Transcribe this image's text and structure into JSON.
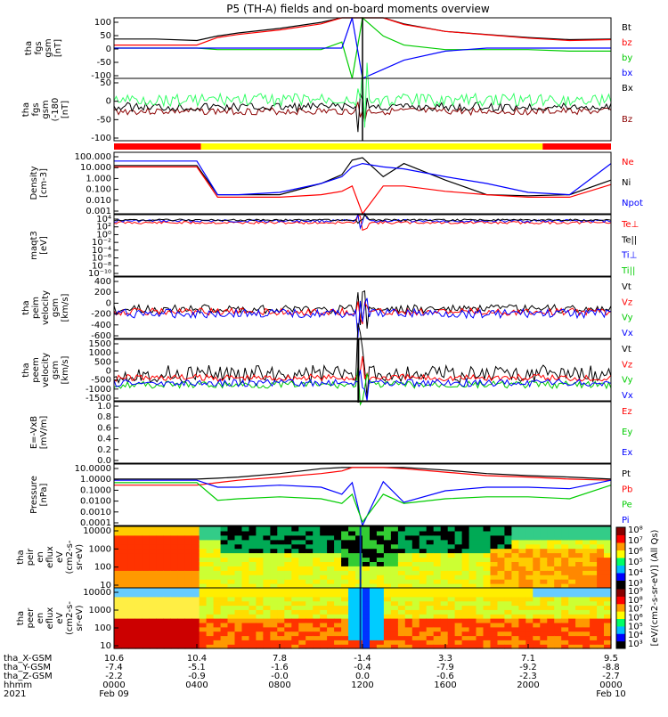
{
  "title": "P5 (TH-A) fields and on-board moments overview",
  "panels": [
    {
      "id": "fgs",
      "ylabel": [
        "tha",
        "fgs",
        "gsm",
        "[nT]"
      ],
      "yticks": [
        "100",
        "50",
        "0",
        "-50",
        "-100"
      ],
      "legend": [
        {
          "t": "Bt",
          "c": "#000000"
        },
        {
          "t": "bz",
          "c": "#ff0000"
        },
        {
          "t": "by",
          "c": "#00cc00"
        },
        {
          "t": "bx",
          "c": "#0000ff"
        }
      ]
    },
    {
      "id": "fgs_ang",
      "ylabel": [
        "tha",
        "fgs",
        "gsm",
        "(-180",
        "[nT]"
      ],
      "yticks": [
        "50",
        "0",
        "-50",
        "-100"
      ],
      "legend": [
        {
          "t": "Bx",
          "c": "#000000"
        },
        {
          "t": "Bz",
          "c": "#8b0000"
        }
      ]
    },
    {
      "id": "density",
      "ylabel": [
        "Density",
        "[cm-3]"
      ],
      "yticks": [
        "100.000",
        "10.000",
        "1.000",
        "0.100",
        "0.010",
        "0.001"
      ],
      "legend": [
        {
          "t": "Ne",
          "c": "#ff0000"
        },
        {
          "t": "Ni",
          "c": "#000000"
        },
        {
          "t": "Npot",
          "c": "#0000ff"
        }
      ]
    },
    {
      "id": "temp",
      "ylabel": [
        "maqt3",
        "[eV]"
      ],
      "yticks": [
        "10⁴",
        "10²",
        "10⁰",
        "10⁻²",
        "10⁻⁴",
        "10⁻⁶",
        "10⁻⁸",
        "10⁻¹⁰"
      ],
      "legend": [
        {
          "t": "Te⊥",
          "c": "#ff0000"
        },
        {
          "t": "Te||",
          "c": "#000000"
        },
        {
          "t": "Ti⊥",
          "c": "#0000ff"
        },
        {
          "t": "Ti||",
          "c": "#00cc00"
        }
      ]
    },
    {
      "id": "peim",
      "ylabel": [
        "tha",
        "peim",
        "velocity",
        "gsm",
        "[km/s]"
      ],
      "yticks": [
        "400",
        "200",
        "0",
        "-200",
        "-400",
        "-600"
      ],
      "legend": [
        {
          "t": "Vt",
          "c": "#000000"
        },
        {
          "t": "Vz",
          "c": "#ff0000"
        },
        {
          "t": "Vy",
          "c": "#00cc00"
        },
        {
          "t": "Vx",
          "c": "#0000ff"
        }
      ]
    },
    {
      "id": "peem",
      "ylabel": [
        "tha",
        "peem",
        "velocity",
        "gsm",
        "[km/s]"
      ],
      "yticks": [
        "1500",
        "1000",
        "500",
        "0",
        "-500",
        "-1000",
        "-1500"
      ],
      "legend": [
        {
          "t": "Vt",
          "c": "#000000"
        },
        {
          "t": "Vz",
          "c": "#ff0000"
        },
        {
          "t": "Vy",
          "c": "#00cc00"
        },
        {
          "t": "Vx",
          "c": "#0000ff"
        }
      ]
    },
    {
      "id": "efield",
      "ylabel": [
        "E=-VxB",
        "[mV/m]"
      ],
      "yticks": [
        "1.0",
        "0.8",
        "0.6",
        "0.4",
        "0.2",
        "0.0"
      ],
      "legend": [
        {
          "t": "Ez",
          "c": "#ff0000"
        },
        {
          "t": "Ey",
          "c": "#00cc00"
        },
        {
          "t": "Ex",
          "c": "#0000ff"
        }
      ]
    },
    {
      "id": "pressure",
      "ylabel": [
        "Pressure",
        "[nPa]"
      ],
      "yticks": [
        "10.0000",
        "1.0000",
        "0.1000",
        "0.0100",
        "0.0010",
        "0.0001"
      ],
      "legend": [
        {
          "t": "Pt",
          "c": "#000000"
        },
        {
          "t": "Pb",
          "c": "#ff0000"
        },
        {
          "t": "Pe",
          "c": "#00cc00"
        },
        {
          "t": "Pi",
          "c": "#0000ff"
        }
      ]
    },
    {
      "id": "peir",
      "ylabel": [
        "tha",
        "peir",
        "en",
        "eflux",
        "eV",
        "(cm2-s-",
        "sr-eV)"
      ],
      "yticks": [
        "10000",
        "1000",
        "100",
        "10"
      ],
      "legend": []
    },
    {
      "id": "peer",
      "ylabel": [
        "tha",
        "peer",
        "en",
        "eflux",
        "eV",
        "(cm2-s-",
        "sr-eV)"
      ],
      "yticks": [
        "10000",
        "1000",
        "100",
        "10"
      ],
      "legend": []
    }
  ],
  "colorbar": {
    "label": "[eV/(cm2-s-sr-eV)] (All Qs)",
    "upper_ticks": [
      "10⁸",
      "10⁷",
      "10⁶",
      "10⁵",
      "10⁴",
      "10³"
    ],
    "lower_ticks": [
      "10⁹",
      "10⁸",
      "10⁷",
      "10⁶",
      "10⁵",
      "10⁴",
      "10³"
    ]
  },
  "xaxis": {
    "row_labels": [
      "tha_X-GSM",
      "tha_Y-GSM",
      "tha_Z-GSM",
      "hhmm",
      "2021"
    ],
    "columns": [
      {
        "v": [
          "10.6",
          "-7.4",
          "-2.2",
          "0000",
          "Feb 09"
        ]
      },
      {
        "v": [
          "10.4",
          "-5.1",
          "-0.9",
          "0400",
          ""
        ]
      },
      {
        "v": [
          "7.8",
          "-1.6",
          "-0.0",
          "0800",
          ""
        ]
      },
      {
        "v": [
          "-1.4",
          "-0.4",
          "0.0",
          "1200",
          ""
        ]
      },
      {
        "v": [
          "3.3",
          "-7.9",
          "-0.6",
          "1600",
          ""
        ]
      },
      {
        "v": [
          "7.1",
          "-9.2",
          "-2.3",
          "2000",
          ""
        ]
      },
      {
        "v": [
          "9.5",
          "-8.8",
          "-2.7",
          "0000",
          "Feb 10"
        ]
      }
    ]
  },
  "chart_data": {
    "type": "line",
    "title": "P5 (TH-A) fields and on-board moments overview",
    "x_hours": [
      0,
      2,
      4,
      5,
      6,
      8,
      10,
      11,
      11.5,
      12,
      13,
      14,
      16,
      18,
      20,
      22,
      24
    ],
    "series": [
      {
        "panel": "fgs",
        "name": "Bt",
        "values": [
          30,
          30,
          25,
          40,
          50,
          65,
          85,
          100,
          100,
          100,
          100,
          80,
          55,
          45,
          35,
          28,
          30
        ]
      },
      {
        "panel": "fgs",
        "name": "bz",
        "values": [
          10,
          10,
          10,
          35,
          45,
          60,
          80,
          100,
          100,
          100,
          100,
          78,
          55,
          44,
          33,
          25,
          28
        ]
      },
      {
        "panel": "fgs",
        "name": "by",
        "values": [
          0,
          0,
          0,
          -5,
          -5,
          -5,
          -5,
          20,
          -100,
          100,
          40,
          10,
          -5,
          -5,
          -5,
          -10,
          -10
        ]
      },
      {
        "panel": "fgs",
        "name": "bx",
        "values": [
          0,
          0,
          0,
          0,
          0,
          0,
          0,
          0,
          100,
          -100,
          -70,
          -40,
          -10,
          0,
          0,
          0,
          0
        ]
      },
      {
        "panel": "density",
        "name": "Ni",
        "values": [
          20,
          20,
          20,
          0.05,
          0.05,
          0.05,
          0.5,
          3,
          60,
          100,
          2,
          30,
          1,
          0.05,
          0.04,
          0.05,
          1
        ]
      },
      {
        "panel": "density",
        "name": "Ne",
        "values": [
          15,
          15,
          15,
          0.03,
          0.03,
          0.03,
          0.05,
          0.1,
          0.3,
          0.001,
          0.3,
          0.3,
          0.1,
          0.05,
          0.03,
          0.03,
          0.4
        ]
      },
      {
        "panel": "density",
        "name": "Npot",
        "values": [
          50,
          50,
          50,
          0.05,
          0.05,
          0.08,
          0.5,
          2,
          15,
          30,
          15,
          10,
          2,
          0.5,
          0.08,
          0.05,
          30
        ]
      },
      {
        "panel": "pressure",
        "name": "Pt",
        "values": [
          1,
          1,
          1,
          1.2,
          1.5,
          3,
          8,
          10,
          10,
          10,
          10,
          10,
          6,
          3,
          2,
          1.5,
          1
        ]
      },
      {
        "panel": "pressure",
        "name": "Pb",
        "values": [
          0.3,
          0.3,
          0.3,
          0.5,
          0.8,
          1.5,
          3,
          5,
          10,
          10,
          10,
          8,
          4,
          2,
          1.5,
          1,
          0.8
        ]
      },
      {
        "panel": "pressure",
        "name": "Pi",
        "values": [
          0.8,
          0.8,
          0.8,
          0.2,
          0.2,
          0.3,
          0.2,
          0.05,
          0.5,
          0.0001,
          0.6,
          0.01,
          0.1,
          0.2,
          0.2,
          0.15,
          0.8
        ]
      },
      {
        "panel": "pressure",
        "name": "Pe",
        "values": [
          0.5,
          0.5,
          0.5,
          0.015,
          0.02,
          0.03,
          0.02,
          0.008,
          0.05,
          0.0002,
          0.05,
          0.008,
          0.02,
          0.03,
          0.03,
          0.02,
          0.3
        ]
      }
    ]
  }
}
